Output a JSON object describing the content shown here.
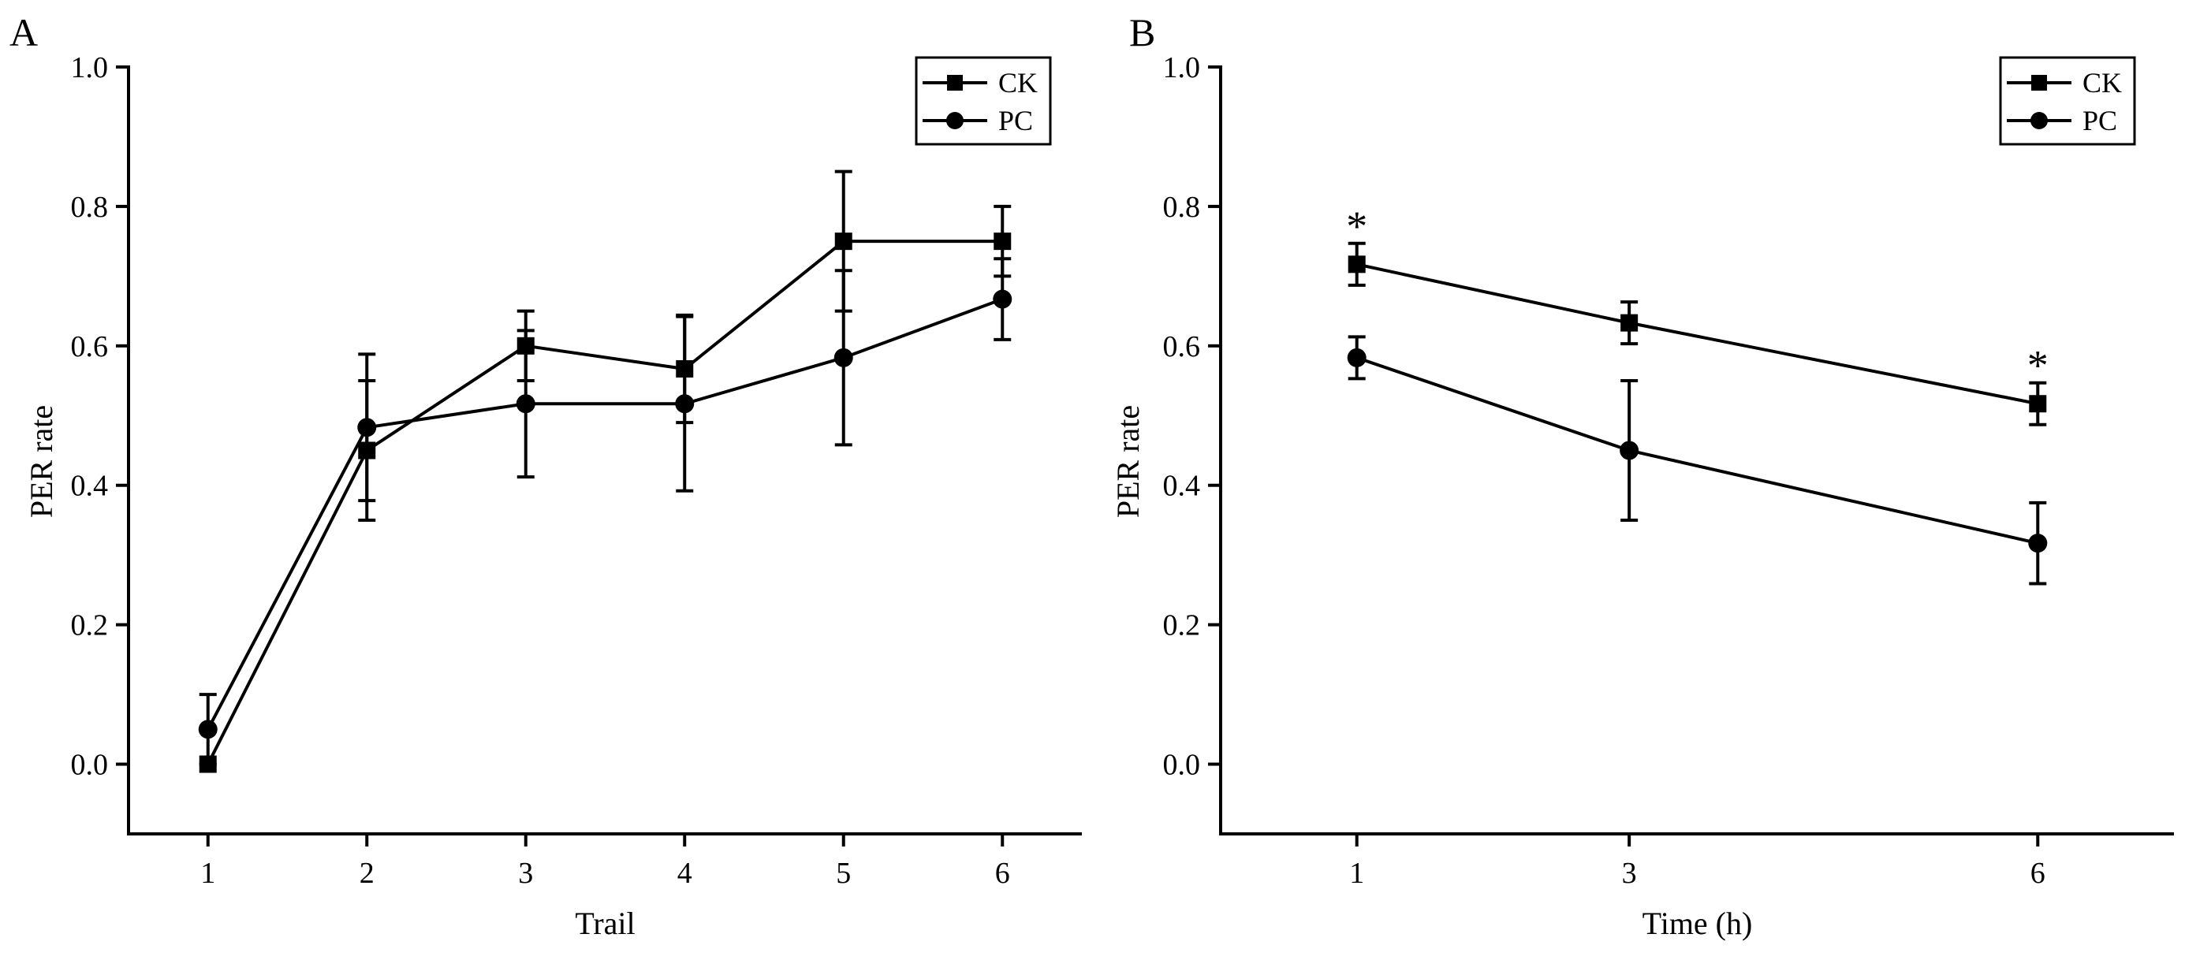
{
  "chart_data": [
    {
      "type": "line",
      "panel_label": "A",
      "title": "",
      "xlabel": "Trail",
      "ylabel": "PER rate",
      "categories": [
        "1",
        "2",
        "3",
        "4",
        "5",
        "6"
      ],
      "x": [
        1,
        2,
        3,
        4,
        5,
        6
      ],
      "xlim": [
        0.5,
        6.5
      ],
      "ylim": [
        -0.1,
        1.0
      ],
      "yticks": [
        0.0,
        0.2,
        0.4,
        0.6,
        0.8,
        1.0
      ],
      "ytick_labels": [
        "0.0",
        "0.2",
        "0.4",
        "0.6",
        "0.8",
        "1.0"
      ],
      "legend": {
        "position": "top-right",
        "entries": [
          "CK",
          "PC"
        ]
      },
      "series": [
        {
          "name": "CK",
          "marker": "square",
          "values": [
            0.0,
            0.45,
            0.6,
            0.567,
            0.75,
            0.75
          ],
          "errors": [
            0.0,
            0.1,
            0.05,
            0.077,
            0.1,
            0.05
          ]
        },
        {
          "name": "PC",
          "marker": "circle",
          "values": [
            0.05,
            0.483,
            0.517,
            0.517,
            0.583,
            0.667
          ],
          "errors": [
            0.05,
            0.105,
            0.105,
            0.125,
            0.125,
            0.058
          ]
        }
      ],
      "annotations": []
    },
    {
      "type": "line",
      "panel_label": "B",
      "title": "",
      "xlabel": "Time (h)",
      "ylabel": "PER rate",
      "categories": [
        "1",
        "3",
        "6"
      ],
      "x": [
        1,
        3,
        6
      ],
      "xlim": [
        0,
        7
      ],
      "ylim": [
        -0.1,
        1.0
      ],
      "yticks": [
        0.0,
        0.2,
        0.4,
        0.6,
        0.8,
        1.0
      ],
      "ytick_labels": [
        "0.0",
        "0.2",
        "0.4",
        "0.6",
        "0.8",
        "1.0"
      ],
      "legend": {
        "position": "top-right",
        "entries": [
          "CK",
          "PC"
        ]
      },
      "series": [
        {
          "name": "CK",
          "marker": "square",
          "values": [
            0.717,
            0.633,
            0.517
          ],
          "errors": [
            0.03,
            0.03,
            0.03
          ]
        },
        {
          "name": "PC",
          "marker": "circle",
          "values": [
            0.583,
            0.45,
            0.317
          ],
          "errors": [
            0.03,
            0.1,
            0.058
          ]
        }
      ],
      "annotations": [
        {
          "text": "*",
          "series": "CK",
          "x": 1
        },
        {
          "text": "*",
          "series": "CK",
          "x": 6
        }
      ]
    }
  ]
}
